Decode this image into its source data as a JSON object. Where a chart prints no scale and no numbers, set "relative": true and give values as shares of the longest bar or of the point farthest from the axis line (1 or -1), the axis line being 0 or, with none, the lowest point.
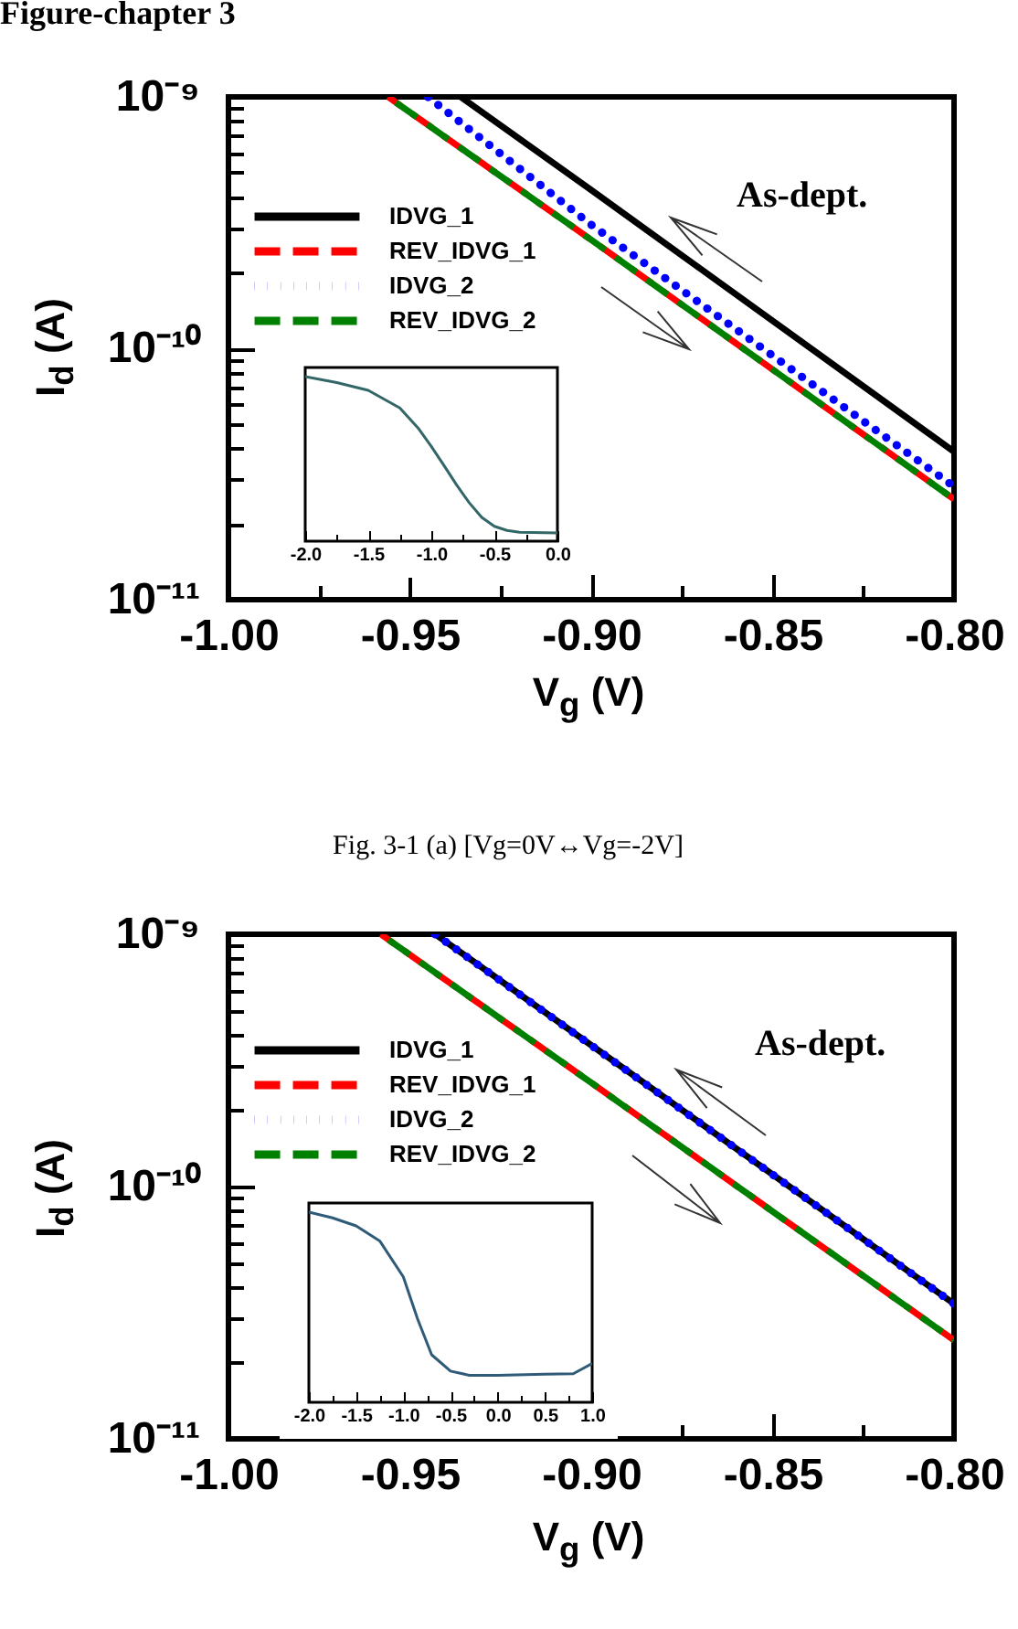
{
  "chart_data": [
    {
      "type": "line",
      "title": "Figure-chapter 3",
      "xlabel": "V$_{g}$ (V)",
      "ylabel": "I$_{d}$ (A)",
      "annotations": [
        "As-dept.",
        "Fig. 3-1 (a) [Vg=0V↔Vg=-2V]"
      ],
      "xlim": [
        -1.0,
        -0.8
      ],
      "ylim": [
        1e-11,
        1e-09
      ],
      "xticks": [
        {
          "value": -1.0,
          "label": "-1.00"
        },
        {
          "value": -0.975,
          "label": null
        },
        -0.95,
        {
          "value": -0.925,
          "label": null
        },
        {
          "value": -0.9,
          "label": "-0.90"
        },
        {
          "value": -0.875,
          "label": null
        },
        -0.85,
        {
          "value": -0.825,
          "label": null
        },
        {
          "value": -0.8,
          "label": "-0.80"
        }
      ],
      "yticks": [
        {
          "value": 1e-11,
          "label": "10⁻¹¹"
        },
        {
          "value": 2e-11,
          "label": null
        },
        {
          "value": 3e-11,
          "label": null
        },
        {
          "value": 4e-11,
          "label": null
        },
        {
          "value": 5e-11,
          "label": null
        },
        {
          "value": 6e-11,
          "label": null
        },
        {
          "value": 7e-11,
          "label": null
        },
        {
          "value": 8e-11,
          "label": null
        },
        {
          "value": 9e-11,
          "label": null
        },
        {
          "value": 1e-10,
          "label": "10⁻¹⁰"
        },
        {
          "value": 2e-10,
          "label": null
        },
        {
          "value": 3e-10,
          "label": null
        },
        {
          "value": 4e-10,
          "label": null
        },
        {
          "value": 5e-10,
          "label": null
        },
        {
          "value": 6e-10,
          "label": null
        },
        {
          "value": 7e-10,
          "label": null
        },
        {
          "value": 8e-10,
          "label": null
        },
        {
          "value": 9e-10,
          "label": null
        },
        {
          "value": 1e-09,
          "label": "10⁻⁹"
        }
      ],
      "log": "y",
      "legend": "top left",
      "series": [
        {
          "name": "IDVG_1",
          "color": "#000000",
          "line_style": "solid",
          "x": [
            -0.936,
            -0.9,
            -0.8
          ],
          "values": [
            1e-09,
            4.26e-10,
            3.88e-11
          ]
        },
        {
          "name": "REV_IDVG_1",
          "color": "#ff0000",
          "line_style": "dashed",
          "x": [
            -0.956,
            -0.9,
            -0.8
          ],
          "values": [
            1e-09,
            2.7e-10,
            2.51e-11
          ]
        },
        {
          "name": "IDVG_2",
          "color": "#0000ff",
          "line_style": "dotted",
          "x": [
            -0.945,
            -0.9,
            -0.8
          ],
          "values": [
            1e-09,
            3.1e-10,
            2.82e-11
          ]
        },
        {
          "name": "REV_IDVG_2",
          "color": "#008000",
          "line_style": "dashed",
          "x": [
            -0.956,
            -0.9,
            -0.8
          ],
          "values": [
            1e-09,
            2.7e-10,
            2.51e-11
          ]
        }
      ]
    },
    {
      "type": "line",
      "relative": true,
      "xlim": [
        -2.0,
        0.0
      ],
      "xticks": [
        {
          "value": -2.0,
          "label": "-2.0"
        },
        {
          "value": -1.75,
          "label": null
        },
        -1.5,
        {
          "value": -1.25,
          "label": null
        },
        {
          "value": -1.0,
          "label": "-1.0"
        },
        {
          "value": -0.75,
          "label": null
        },
        -0.5,
        {
          "value": -0.25,
          "label": null
        },
        {
          "value": 0.0,
          "label": "0.0"
        }
      ],
      "tick_labels": "x",
      "series": [
        {
          "color": "#336666",
          "line_style": "solid",
          "x": [
            -2.0,
            -1.75,
            -1.5,
            -1.25,
            -1.1,
            -1.0,
            -0.9,
            -0.8,
            -0.7,
            -0.6,
            -0.5,
            -0.4,
            -0.3,
            0.0
          ],
          "values": [
            1.0,
            0.964,
            0.917,
            0.81,
            0.683,
            0.576,
            0.46,
            0.342,
            0.234,
            0.144,
            0.09,
            0.065,
            0.054,
            0.05
          ]
        }
      ]
    },
    {
      "type": "line",
      "xlabel": "V$_{g}$ (V)",
      "ylabel": "I$_{d}$ (A)",
      "annotations": [
        "As-dept."
      ],
      "xlim": [
        -1.0,
        -0.8
      ],
      "ylim": [
        1e-11,
        1e-09
      ],
      "xticks": [
        {
          "value": -1.0,
          "label": "-1.00"
        },
        {
          "value": -0.975,
          "label": null
        },
        -0.95,
        {
          "value": -0.925,
          "label": null
        },
        {
          "value": -0.9,
          "label": "-0.90"
        },
        {
          "value": -0.875,
          "label": null
        },
        -0.85,
        {
          "value": -0.825,
          "label": null
        },
        {
          "value": -0.8,
          "label": "-0.80"
        }
      ],
      "yticks": [
        {
          "value": 1e-11,
          "label": "10⁻¹¹"
        },
        {
          "value": 2e-11,
          "label": null
        },
        {
          "value": 3e-11,
          "label": null
        },
        {
          "value": 4e-11,
          "label": null
        },
        {
          "value": 5e-11,
          "label": null
        },
        {
          "value": 6e-11,
          "label": null
        },
        {
          "value": 7e-11,
          "label": null
        },
        {
          "value": 8e-11,
          "label": null
        },
        {
          "value": 9e-11,
          "label": null
        },
        {
          "value": 1e-10,
          "label": "10⁻¹⁰"
        },
        {
          "value": 2e-10,
          "label": null
        },
        {
          "value": 3e-10,
          "label": null
        },
        {
          "value": 4e-10,
          "label": null
        },
        {
          "value": 5e-10,
          "label": null
        },
        {
          "value": 6e-10,
          "label": null
        },
        {
          "value": 7e-10,
          "label": null
        },
        {
          "value": 8e-10,
          "label": null
        },
        {
          "value": 9e-10,
          "label": null
        },
        {
          "value": 1e-09,
          "label": "10⁻⁹"
        }
      ],
      "log": "y",
      "legend": "top left",
      "series": [
        {
          "name": "IDVG_1",
          "color": "#000000",
          "line_style": "solid",
          "x": [
            -0.943,
            -0.9,
            -0.8
          ],
          "values": [
            1e-09,
            3.63e-10,
            3.43e-11
          ]
        },
        {
          "name": "REV_IDVG_1",
          "color": "#ff0000",
          "line_style": "dashed",
          "x": [
            -0.958,
            -0.9,
            -0.8
          ],
          "values": [
            1e-09,
            2.58e-10,
            2.46e-11
          ]
        },
        {
          "name": "IDVG_2",
          "color": "#0000ff",
          "line_style": "dotted",
          "x": [
            -0.943,
            -0.9,
            -0.8
          ],
          "values": [
            1e-09,
            3.63e-10,
            3.43e-11
          ]
        },
        {
          "name": "REV_IDVG_2",
          "color": "#008000",
          "line_style": "dashed",
          "x": [
            -0.958,
            -0.9,
            -0.8
          ],
          "values": [
            1e-09,
            2.58e-10,
            2.46e-11
          ]
        }
      ]
    },
    {
      "type": "line",
      "relative": true,
      "xlim": [
        -2.0,
        1.0
      ],
      "xticks": [
        {
          "value": -2.0,
          "label": "-2.0"
        },
        {
          "value": -1.75,
          "label": null
        },
        -1.5,
        {
          "value": -1.25,
          "label": null
        },
        {
          "value": -1.0,
          "label": "-1.0"
        },
        {
          "value": -0.75,
          "label": null
        },
        -0.5,
        {
          "value": -0.25,
          "label": null
        },
        {
          "value": 0.0,
          "label": "0.0"
        },
        {
          "value": 0.25,
          "label": null
        },
        0.5,
        {
          "value": 0.75,
          "label": null
        },
        {
          "value": 1.0,
          "label": "1.0"
        }
      ],
      "tick_labels": "x",
      "series": [
        {
          "color": "#2f5a78",
          "line_style": "solid",
          "x": [
            -2.0,
            -1.75,
            -1.5,
            -1.25,
            -1.0,
            -0.85,
            -0.7,
            -0.5,
            -0.3,
            0.0,
            0.5,
            0.8,
            1.0
          ],
          "values": [
            1.0,
            0.97,
            0.928,
            0.849,
            0.66,
            0.44,
            0.25,
            0.164,
            0.142,
            0.142,
            0.148,
            0.15,
            0.204
          ]
        }
      ]
    }
  ]
}
